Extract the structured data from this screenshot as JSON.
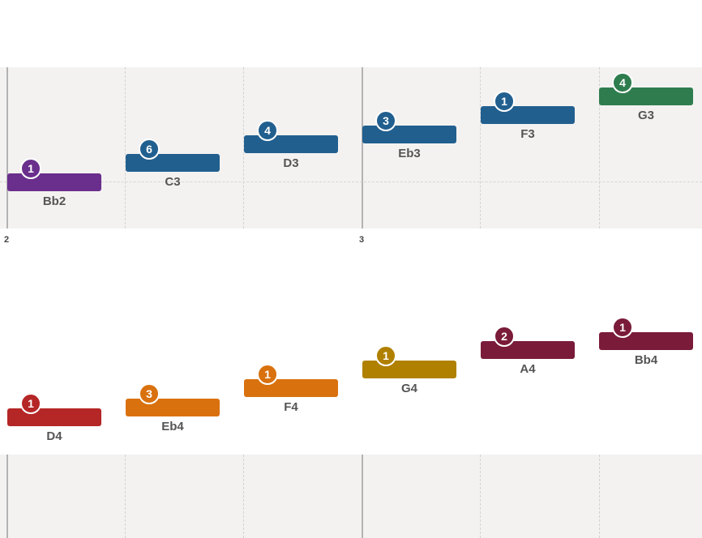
{
  "colors": {
    "purple": "#6a2e8c",
    "blue": "#215f8f",
    "green": "#2f7d4e",
    "red": "#b52626",
    "orange": "#d9710e",
    "gold": "#b08000",
    "maroon": "#7a1b3a",
    "panel_bg": "#f3f2f1"
  },
  "measures": {
    "m2": "2",
    "m3": "3"
  },
  "rows": [
    {
      "name": "row1",
      "notes": [
        {
          "label": "Bb2",
          "finger": "1",
          "color": "#6a2e8c"
        },
        {
          "label": "C3",
          "finger": "6",
          "color": "#215f8f"
        },
        {
          "label": "D3",
          "finger": "4",
          "color": "#215f8f"
        },
        {
          "label": "Eb3",
          "finger": "3",
          "color": "#215f8f"
        },
        {
          "label": "F3",
          "finger": "1",
          "color": "#215f8f"
        },
        {
          "label": "G3",
          "finger": "4",
          "color": "#2f7d4e"
        }
      ]
    },
    {
      "name": "row2",
      "notes": [
        {
          "label": "D4",
          "finger": "1",
          "color": "#b52626"
        },
        {
          "label": "Eb4",
          "finger": "3",
          "color": "#d9710e"
        },
        {
          "label": "F4",
          "finger": "1",
          "color": "#d9710e"
        },
        {
          "label": "G4",
          "finger": "1",
          "color": "#b08000"
        },
        {
          "label": "A4",
          "finger": "2",
          "color": "#7a1b3a"
        },
        {
          "label": "Bb4",
          "finger": "1",
          "color": "#7a1b3a"
        }
      ]
    }
  ]
}
